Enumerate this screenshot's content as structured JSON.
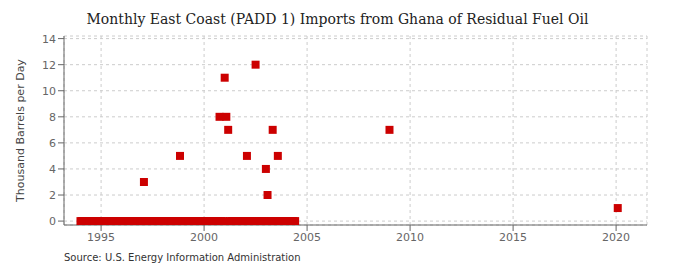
{
  "chart_data": {
    "type": "scatter",
    "title": "Monthly East Coast (PADD 1) Imports from Ghana of Residual Fuel Oil",
    "y_label": "Thousand Barrels per Day",
    "annotation": "Source: U.S. Energy Information Administration",
    "color": "#cc0000",
    "marker": "square",
    "grid": true,
    "xlim": [
      1993.2,
      2021.5
    ],
    "ylim": [
      -0.3,
      14.2
    ],
    "xticks": [
      1995,
      2000,
      2005,
      2010,
      2015,
      2020
    ],
    "yticks": [
      0,
      2,
      4,
      6,
      8,
      10,
      12,
      14
    ],
    "x": [
      1994.0,
      1994.08,
      1994.17,
      1994.25,
      1994.33,
      1994.42,
      1994.5,
      1994.58,
      1994.67,
      1994.75,
      1994.83,
      1994.92,
      1995.0,
      1995.08,
      1995.17,
      1995.25,
      1995.33,
      1995.42,
      1995.5,
      1995.58,
      1995.67,
      1995.75,
      1995.83,
      1995.92,
      1996.0,
      1996.08,
      1996.17,
      1996.25,
      1996.33,
      1996.42,
      1996.5,
      1996.58,
      1996.67,
      1996.75,
      1996.83,
      1996.92,
      1997.08,
      1997.0,
      1997.17,
      1997.25,
      1997.33,
      1997.42,
      1997.5,
      1997.58,
      1997.67,
      1997.75,
      1997.83,
      1997.92,
      1998.0,
      1998.08,
      1998.17,
      1998.25,
      1998.33,
      1998.42,
      1998.5,
      1998.58,
      1998.67,
      1998.75,
      1998.83,
      1998.92,
      1999.0,
      1999.08,
      1999.17,
      1999.25,
      1999.33,
      1999.42,
      1999.5,
      1999.58,
      1999.67,
      1999.75,
      1999.83,
      1999.92,
      2000.0,
      2000.08,
      2000.17,
      2000.25,
      2000.33,
      2000.42,
      2000.5,
      2000.58,
      2000.67,
      2000.75,
      2000.83,
      2000.92,
      2001.0,
      2001.08,
      2001.17,
      2001.25,
      2001.33,
      2001.42,
      2001.5,
      2001.58,
      2001.67,
      2001.75,
      2001.83,
      2001.92,
      2002.0,
      2002.08,
      2002.17,
      2002.25,
      2002.33,
      2002.5,
      2002.58,
      2002.67,
      2002.75,
      2002.83,
      2002.92,
      2003.0,
      2003.08,
      2003.17,
      2003.25,
      2003.33,
      2003.42,
      2003.5,
      2003.58,
      2003.67,
      2003.75,
      2003.83,
      2003.92,
      2004.0,
      2004.08,
      2004.17,
      2004.25,
      2004.33,
      2004.42,
      2009.0,
      2020.08
    ],
    "values": [
      0,
      0,
      0,
      0,
      0,
      0,
      0,
      0,
      0,
      0,
      0,
      0,
      0,
      0,
      0,
      0,
      0,
      0,
      0,
      0,
      0,
      0,
      0,
      0,
      0,
      0,
      0,
      0,
      0,
      0,
      0,
      0,
      0,
      0,
      0,
      0,
      3,
      0,
      0,
      0,
      0,
      0,
      0,
      0,
      0,
      0,
      0,
      0,
      0,
      0,
      0,
      0,
      0,
      0,
      0,
      0,
      0,
      0,
      5,
      0,
      0,
      0,
      0,
      0,
      0,
      0,
      0,
      0,
      0,
      0,
      0,
      0,
      0,
      0,
      0,
      0,
      0,
      0,
      0,
      0,
      0,
      8,
      0,
      0,
      11,
      8,
      7,
      0,
      0,
      0,
      0,
      0,
      0,
      0,
      0,
      0,
      0,
      5,
      0,
      0,
      0,
      12,
      0,
      0,
      0,
      0,
      0,
      4,
      2,
      0,
      0,
      7,
      0,
      0,
      5,
      0,
      0,
      0,
      0,
      0,
      0,
      0,
      0,
      0,
      0,
      7,
      1
    ]
  }
}
